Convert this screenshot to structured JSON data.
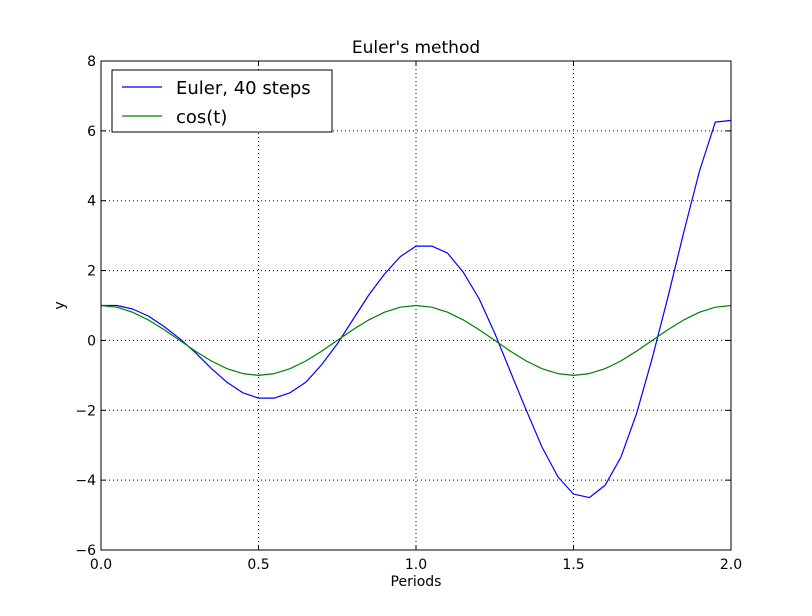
{
  "chart_data": {
    "type": "line",
    "title": "Euler's method",
    "xlabel": "Periods",
    "ylabel": "y",
    "xlim": [
      0.0,
      2.0
    ],
    "ylim": [
      -6,
      8
    ],
    "xticks": [
      "0.0",
      "0.5",
      "1.0",
      "1.5",
      "2.0"
    ],
    "yticks": [
      "−6",
      "−4",
      "−2",
      "0",
      "2",
      "4",
      "6",
      "8"
    ],
    "grid": true,
    "legend_position": "top-left",
    "series": [
      {
        "name": "Euler, 40 steps",
        "color": "#0000ff",
        "x": [
          0.0,
          0.05,
          0.1,
          0.15,
          0.2,
          0.25,
          0.3,
          0.35,
          0.4,
          0.45,
          0.5,
          0.55,
          0.6,
          0.65,
          0.7,
          0.75,
          0.8,
          0.85,
          0.9,
          0.95,
          1.0,
          1.05,
          1.1,
          1.15,
          1.2,
          1.25,
          1.3,
          1.35,
          1.4,
          1.45,
          1.5,
          1.55,
          1.6,
          1.65,
          1.7,
          1.75,
          1.8,
          1.85,
          1.9,
          1.95,
          2.0
        ],
        "y": [
          1.0,
          1.0,
          0.9,
          0.7,
          0.4,
          0.05,
          -0.35,
          -0.8,
          -1.2,
          -1.5,
          -1.65,
          -1.65,
          -1.5,
          -1.2,
          -0.7,
          -0.1,
          0.6,
          1.3,
          1.9,
          2.4,
          2.7,
          2.7,
          2.5,
          1.95,
          1.2,
          0.2,
          -0.9,
          -2.0,
          -3.05,
          -3.9,
          -4.4,
          -4.5,
          -4.15,
          -3.35,
          -2.1,
          -0.5,
          1.25,
          3.1,
          4.85,
          6.25,
          6.3
        ]
      },
      {
        "name": "cos(t)",
        "color": "#008000",
        "x": [
          0.0,
          0.05,
          0.1,
          0.15,
          0.2,
          0.25,
          0.3,
          0.35,
          0.4,
          0.45,
          0.5,
          0.55,
          0.6,
          0.65,
          0.7,
          0.75,
          0.8,
          0.85,
          0.9,
          0.95,
          1.0,
          1.05,
          1.1,
          1.15,
          1.2,
          1.25,
          1.3,
          1.35,
          1.4,
          1.45,
          1.5,
          1.55,
          1.6,
          1.65,
          1.7,
          1.75,
          1.8,
          1.85,
          1.9,
          1.95,
          2.0
        ],
        "y": [
          1.0,
          0.951,
          0.809,
          0.588,
          0.309,
          0.0,
          -0.309,
          -0.588,
          -0.809,
          -0.951,
          -1.0,
          -0.951,
          -0.809,
          -0.588,
          -0.309,
          0.0,
          0.309,
          0.588,
          0.809,
          0.951,
          1.0,
          0.951,
          0.809,
          0.588,
          0.309,
          0.0,
          -0.309,
          -0.588,
          -0.809,
          -0.951,
          -1.0,
          -0.951,
          -0.809,
          -0.588,
          -0.309,
          0.0,
          0.309,
          0.588,
          0.809,
          0.951,
          1.0
        ]
      }
    ]
  }
}
